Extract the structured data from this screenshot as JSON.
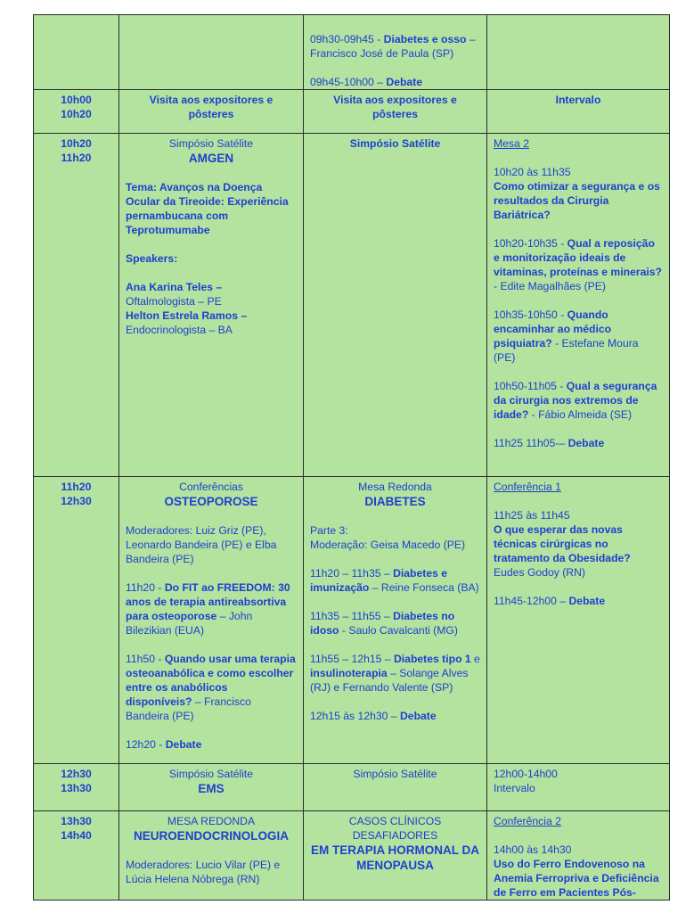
{
  "colors": {
    "background": "#b3e39f",
    "text": "#1f3fd1",
    "border": "#2b2b2b"
  },
  "rows": [
    {
      "time": [
        "",
        ""
      ],
      "cells": [
        [],
        [
          {
            "parts": []
          },
          {
            "parts": [
              {
                "t": "09h30-09h45 - "
              },
              {
                "t": "Diabetes e osso",
                "b": true
              },
              {
                "t": " – Francisco José de Paula (SP)"
              }
            ]
          },
          {
            "parts": []
          },
          {
            "parts": [
              {
                "t": "09h45-10h00 – "
              },
              {
                "t": "Debate",
                "b": true
              }
            ]
          }
        ],
        []
      ],
      "pre": [
        []
      ]
    },
    {
      "time": [
        "10h00",
        "10h20"
      ],
      "cells": [
        [
          {
            "c": true,
            "parts": [
              {
                "t": "Visita aos expositores e pôsteres",
                "b": true
              }
            ]
          }
        ],
        [
          {
            "c": true,
            "parts": [
              {
                "t": "Visita aos expositores e pôsteres",
                "b": true
              }
            ]
          }
        ],
        [
          {
            "c": true,
            "parts": [
              {
                "t": "Intervalo",
                "b": true
              }
            ]
          }
        ]
      ]
    },
    {
      "time": [
        "10h20",
        "11h20"
      ],
      "cells": [
        [
          {
            "c": true,
            "parts": [
              {
                "t": "Simpósio Satélite"
              }
            ]
          },
          {
            "c": true,
            "big": true,
            "parts": [
              {
                "t": "AMGEN",
                "b": true
              }
            ]
          },
          {
            "parts": []
          },
          {
            "parts": [
              {
                "t": "Tema:   Avanços na Doença Ocular da Tireoide: Experiência pernambucana com Teprotumumabe",
                "b": true
              }
            ]
          },
          {
            "parts": []
          },
          {
            "parts": [
              {
                "t": "Speakers:",
                "b": true
              }
            ]
          },
          {
            "parts": []
          },
          {
            "parts": [
              {
                "t": "Ana Karina Teles –",
                "b": true
              }
            ]
          },
          {
            "parts": [
              {
                "t": "Oftalmologista – PE"
              }
            ]
          },
          {
            "parts": [
              {
                "t": "Helton Estrela Ramos –",
                "b": true
              }
            ]
          },
          {
            "parts": [
              {
                "t": "Endocrinologista – BA"
              }
            ]
          }
        ],
        [
          {
            "c": true,
            "parts": [
              {
                "t": "Simpósio Satélite",
                "b": true
              }
            ]
          }
        ],
        [
          {
            "parts": [
              {
                "t": "Mesa 2",
                "u": true
              }
            ]
          },
          {
            "parts": []
          },
          {
            "parts": [
              {
                "t": "10h20 às 11h35"
              }
            ]
          },
          {
            "parts": [
              {
                "t": "Como otimizar a segurança e os resultados da Cirurgia Bariátrica?",
                "b": true
              }
            ]
          },
          {
            "parts": []
          },
          {
            "parts": [
              {
                "t": "10h20-10h35 - "
              },
              {
                "t": "Qual a reposição e monitorização ideais de vitaminas, proteínas e minerais?",
                "b": true
              },
              {
                "t": "    - Edite Magalhães (PE)"
              }
            ]
          },
          {
            "parts": []
          },
          {
            "parts": [
              {
                "t": "10h35-10h50 - "
              },
              {
                "t": "Quando encaminhar ao médico psiquiatra?",
                "b": true
              },
              {
                "t": " - Estefane Moura (PE)"
              }
            ]
          },
          {
            "parts": []
          },
          {
            "parts": [
              {
                "t": "10h50-11h05 - "
              },
              {
                "t": "Qual a segurança da cirurgia nos extremos de idade?",
                "b": true
              },
              {
                "t": "  - Fábio Almeida (SE)"
              }
            ]
          },
          {
            "parts": []
          },
          {
            "parts": [
              {
                "t": "11h25 11h05-– "
              },
              {
                "t": "Debate",
                "b": true
              }
            ]
          }
        ]
      ]
    },
    {
      "time": [
        "11h20",
        "12h30"
      ],
      "cells": [
        [
          {
            "c": true,
            "parts": [
              {
                "t": "Conferências"
              }
            ]
          },
          {
            "c": true,
            "big": true,
            "parts": [
              {
                "t": "OSTEOPOROSE",
                "b": true
              }
            ]
          },
          {
            "parts": []
          },
          {
            "parts": [
              {
                "t": "Moderadores: Luiz Griz (PE), Leonardo Bandeira (PE) e Elba Bandeira (PE)"
              }
            ]
          },
          {
            "parts": []
          },
          {
            "parts": [
              {
                "t": "11h20 - "
              },
              {
                "t": "Do FIT ao FREEDOM: 30 anos de terapia antireabsortiva para osteoporose",
                "b": true
              },
              {
                "t": " – John Bilezikian (EUA)"
              }
            ]
          },
          {
            "parts": []
          },
          {
            "parts": [
              {
                "t": "11h50 - "
              },
              {
                "t": "Quando usar uma terapia osteoanabólica e como escolher entre os anabólicos disponíveis?",
                "b": true
              },
              {
                "t": " – Francisco Bandeira (PE)"
              }
            ]
          },
          {
            "parts": []
          },
          {
            "parts": [
              {
                "t": "12h20 - "
              },
              {
                "t": "Debate",
                "b": true
              }
            ]
          }
        ],
        [
          {
            "c": true,
            "parts": [
              {
                "t": "Mesa Redonda"
              }
            ]
          },
          {
            "c": true,
            "big": true,
            "parts": [
              {
                "t": "DIABETES",
                "b": true
              }
            ]
          },
          {
            "parts": []
          },
          {
            "parts": [
              {
                "t": "Parte 3:"
              }
            ]
          },
          {
            "parts": [
              {
                "t": "Moderação: Geisa Macedo (PE)"
              }
            ]
          },
          {
            "parts": []
          },
          {
            "parts": [
              {
                "t": "11h20 – 11h35 – "
              },
              {
                "t": "Diabetes e imunização",
                "b": true
              },
              {
                "t": " – Reine Fonseca (BA)"
              }
            ]
          },
          {
            "parts": []
          },
          {
            "parts": [
              {
                "t": "11h35 – 11h55 – "
              },
              {
                "t": "Diabetes no idoso",
                "b": true
              },
              {
                "t": " - Saulo Cavalcanti (MG)"
              }
            ]
          },
          {
            "parts": []
          },
          {
            "parts": [
              {
                "t": "11h55 – 12h15 – "
              },
              {
                "t": "Diabetes tipo 1",
                "b": true
              },
              {
                "t": " e "
              },
              {
                "t": "insulinoterapia",
                "b": true
              },
              {
                "t": " – Solange Alves (RJ) e Fernando Valente (SP)"
              }
            ]
          },
          {
            "parts": []
          },
          {
            "parts": [
              {
                "t": "12h15 às 12h30 – "
              },
              {
                "t": "Debate",
                "b": true
              }
            ]
          }
        ],
        [
          {
            "parts": [
              {
                "t": "Conferência 1",
                "u": true
              }
            ]
          },
          {
            "parts": []
          },
          {
            "parts": [
              {
                "t": "11h25 às 11h45"
              }
            ]
          },
          {
            "parts": [
              {
                "t": "O que esperar das novas técnicas cirúrgicas no tratamento da Obesidade?",
                "b": true
              }
            ]
          },
          {
            "parts": [
              {
                "t": "Eudes Godoy (RN)"
              }
            ]
          },
          {
            "parts": []
          },
          {
            "parts": [
              {
                "t": "11h45-12h00 – "
              },
              {
                "t": "Debate",
                "b": true
              }
            ]
          }
        ]
      ]
    },
    {
      "time": [
        "12h30",
        "13h30"
      ],
      "cells": [
        [
          {
            "c": true,
            "parts": [
              {
                "t": "Simpósio Satélite"
              }
            ]
          },
          {
            "c": true,
            "big": true,
            "parts": [
              {
                "t": "EMS",
                "b": true
              }
            ]
          }
        ],
        [
          {
            "c": true,
            "parts": [
              {
                "t": "Simpósio Satélite"
              }
            ]
          }
        ],
        [
          {
            "parts": [
              {
                "t": "12h00-14h00"
              }
            ]
          },
          {
            "parts": [
              {
                "t": " Intervalo"
              }
            ]
          }
        ]
      ]
    },
    {
      "time": [
        "13h30",
        "14h40"
      ],
      "cells": [
        [
          {
            "c": true,
            "parts": [
              {
                "t": "MESA REDONDA"
              }
            ]
          },
          {
            "c": true,
            "big": true,
            "parts": [
              {
                "t": "NEUROENDOCRINOLOGIA",
                "b": true
              }
            ]
          },
          {
            "parts": []
          },
          {
            "parts": [
              {
                "t": "Moderadores: Lucio Vilar (PE) e Lúcia Helena Nóbrega (RN)"
              }
            ]
          }
        ],
        [
          {
            "c": true,
            "parts": [
              {
                "t": "CASOS CLÍNICOS DESAFIADORES"
              }
            ]
          },
          {
            "c": true,
            "big": true,
            "parts": [
              {
                "t": "EM TERAPIA HORMONAL DA MENOPAUSA",
                "b": true
              }
            ]
          }
        ],
        [
          {
            "parts": [
              {
                "t": "Conferência 2",
                "u": true
              }
            ]
          },
          {
            "parts": []
          },
          {
            "parts": [
              {
                "t": "14h00 às 14h30"
              }
            ]
          },
          {
            "parts": [
              {
                "t": "Uso do Ferro Endovenoso na Anemia Ferropriva e Deficiência de Ferro em Pacientes Pós-",
                "b": true
              }
            ]
          }
        ]
      ]
    }
  ]
}
